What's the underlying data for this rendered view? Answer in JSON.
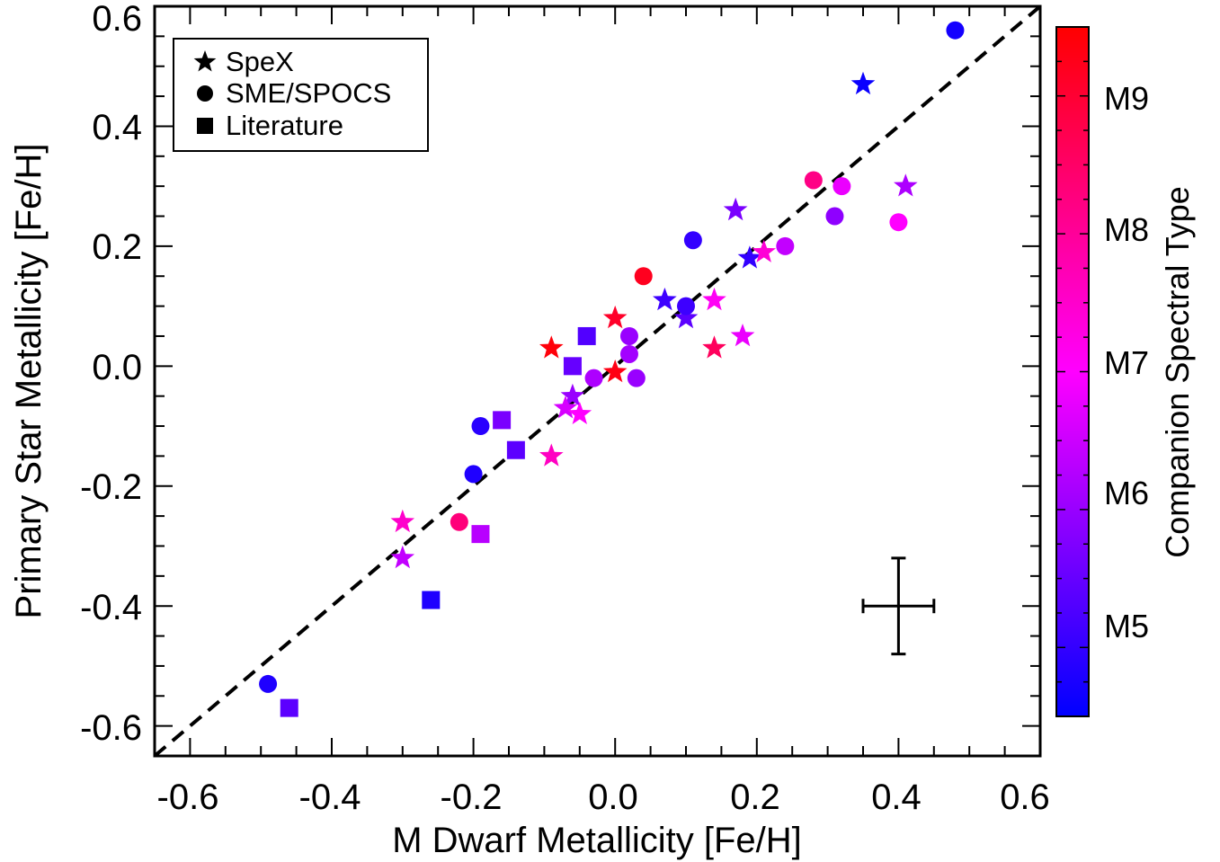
{
  "chart_data": {
    "type": "scatter",
    "xlabel": "M Dwarf Metallicity [Fe/H]",
    "ylabel": "Primary Star Metallicity [Fe/H]",
    "xlim": [
      -0.65,
      0.6
    ],
    "ylim": [
      -0.65,
      0.6
    ],
    "x_ticks": [
      "-0.6",
      "-0.4",
      "-0.2",
      "0.0",
      "0.2",
      "0.4",
      "0.6"
    ],
    "y_ticks": [
      "-0.6",
      "-0.4",
      "-0.2",
      "0.0",
      "0.2",
      "0.4",
      "0.6"
    ],
    "x_tick_values": [
      -0.6,
      -0.4,
      -0.2,
      0.0,
      0.2,
      0.4,
      0.6
    ],
    "y_tick_values": [
      -0.6,
      -0.4,
      -0.2,
      0.0,
      0.2,
      0.4,
      0.6
    ],
    "reference_line": {
      "style": "dashed",
      "from": [
        -0.65,
        -0.65
      ],
      "to": [
        0.6,
        0.6
      ]
    },
    "legend": {
      "placement": "top-left",
      "entries": [
        {
          "marker": "star",
          "label": "SpeX"
        },
        {
          "marker": "circle",
          "label": "SME/SPOCS"
        },
        {
          "marker": "square",
          "label": "Literature"
        }
      ]
    },
    "colorbar": {
      "label": "Companion Spectral Type",
      "range": [
        4.5,
        9.5
      ],
      "ticks": [
        "M5",
        "M6",
        "M7",
        "M8",
        "M9"
      ],
      "tick_values": [
        5,
        6,
        7,
        8,
        9
      ],
      "colors": [
        "#0000ff",
        "#ff00ff",
        "#ff0000"
      ]
    },
    "error_bar": {
      "x": 0.4,
      "y": -0.4,
      "xerr": 0.05,
      "yerr": 0.08
    },
    "series": [
      {
        "marker": "star",
        "points": [
          {
            "x": 0.35,
            "y": 0.47,
            "spt": 4.6
          },
          {
            "x": 0.41,
            "y": 0.3,
            "spt": 6.2
          },
          {
            "x": 0.17,
            "y": 0.26,
            "spt": 5.7
          },
          {
            "x": 0.19,
            "y": 0.18,
            "spt": 5.0
          },
          {
            "x": 0.21,
            "y": 0.19,
            "spt": 7.4
          },
          {
            "x": 0.07,
            "y": 0.11,
            "spt": 5.1
          },
          {
            "x": 0.14,
            "y": 0.11,
            "spt": 7.1
          },
          {
            "x": 0.1,
            "y": 0.08,
            "spt": 5.4
          },
          {
            "x": 0.18,
            "y": 0.05,
            "spt": 6.8
          },
          {
            "x": 0.14,
            "y": 0.03,
            "spt": 8.6
          },
          {
            "x": 0.0,
            "y": 0.08,
            "spt": 9.1
          },
          {
            "x": 0.0,
            "y": -0.01,
            "spt": 9.3
          },
          {
            "x": -0.09,
            "y": 0.03,
            "spt": 9.4
          },
          {
            "x": -0.06,
            "y": -0.05,
            "spt": 6.0
          },
          {
            "x": -0.07,
            "y": -0.07,
            "spt": 6.6
          },
          {
            "x": -0.05,
            "y": -0.08,
            "spt": 7.0
          },
          {
            "x": -0.09,
            "y": -0.15,
            "spt": 7.6
          },
          {
            "x": -0.3,
            "y": -0.26,
            "spt": 7.5
          },
          {
            "x": -0.3,
            "y": -0.32,
            "spt": 6.4
          }
        ]
      },
      {
        "marker": "circle",
        "points": [
          {
            "x": 0.48,
            "y": 0.56,
            "spt": 4.7
          },
          {
            "x": 0.28,
            "y": 0.31,
            "spt": 8.2
          },
          {
            "x": 0.32,
            "y": 0.3,
            "spt": 6.8
          },
          {
            "x": 0.31,
            "y": 0.25,
            "spt": 5.9
          },
          {
            "x": 0.4,
            "y": 0.24,
            "spt": 7.0
          },
          {
            "x": 0.24,
            "y": 0.2,
            "spt": 6.4
          },
          {
            "x": 0.11,
            "y": 0.21,
            "spt": 5.0
          },
          {
            "x": 0.04,
            "y": 0.15,
            "spt": 9.2
          },
          {
            "x": 0.1,
            "y": 0.1,
            "spt": 5.1
          },
          {
            "x": 0.02,
            "y": 0.05,
            "spt": 6.0
          },
          {
            "x": 0.02,
            "y": 0.02,
            "spt": 6.1
          },
          {
            "x": -0.03,
            "y": -0.02,
            "spt": 6.2
          },
          {
            "x": 0.03,
            "y": -0.02,
            "spt": 6.0
          },
          {
            "x": -0.19,
            "y": -0.1,
            "spt": 4.9
          },
          {
            "x": -0.2,
            "y": -0.18,
            "spt": 4.8
          },
          {
            "x": -0.22,
            "y": -0.26,
            "spt": 8.3
          },
          {
            "x": -0.49,
            "y": -0.53,
            "spt": 4.8
          }
        ]
      },
      {
        "marker": "square",
        "points": [
          {
            "x": -0.04,
            "y": 0.05,
            "spt": 5.3
          },
          {
            "x": -0.06,
            "y": 0.0,
            "spt": 5.5
          },
          {
            "x": -0.16,
            "y": -0.09,
            "spt": 5.7
          },
          {
            "x": -0.14,
            "y": -0.14,
            "spt": 5.4
          },
          {
            "x": -0.19,
            "y": -0.28,
            "spt": 6.3
          },
          {
            "x": -0.26,
            "y": -0.39,
            "spt": 4.8
          },
          {
            "x": -0.46,
            "y": -0.57,
            "spt": 5.4
          }
        ]
      }
    ]
  }
}
